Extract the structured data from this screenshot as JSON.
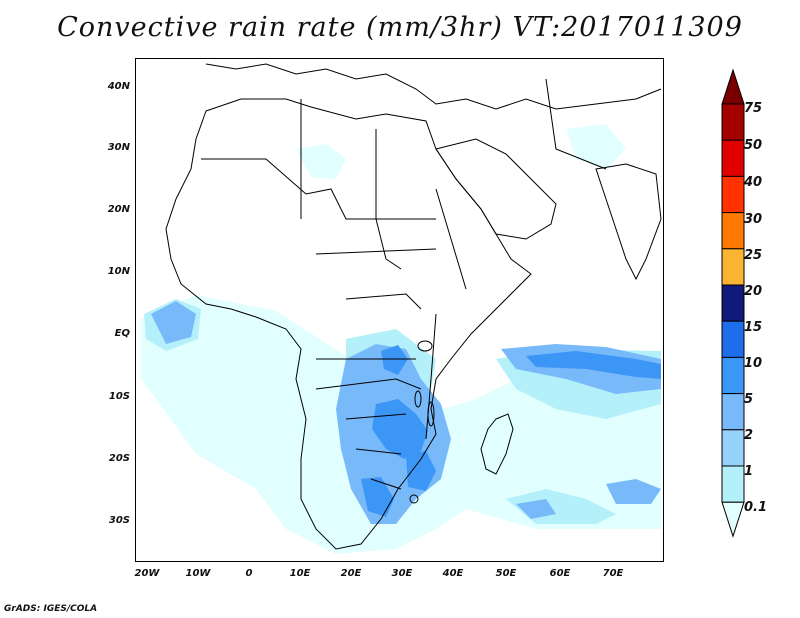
{
  "title": "Convective rain rate (mm/3hr) VT:2017011309",
  "footer": "GrADS: IGES/COLA",
  "latitude_labels": [
    "40N",
    "30N",
    "20N",
    "10N",
    "EQ",
    "10S",
    "20S",
    "30S"
  ],
  "longitude_labels": [
    "20W",
    "10W",
    "0",
    "10E",
    "20E",
    "30E",
    "40E",
    "50E",
    "60E",
    "70E"
  ],
  "colorbar": {
    "labels": [
      "0.1",
      "1",
      "2",
      "5",
      "10",
      "15",
      "20",
      "25",
      "30",
      "40",
      "50",
      "75"
    ],
    "colors": [
      "#e1ffff",
      "#b4f0fa",
      "#96d2fa",
      "#78b9fa",
      "#3c96f5",
      "#1e6eeb",
      "#101a7a",
      "#fab432",
      "#ff7800",
      "#ff3200",
      "#e10000",
      "#a50000",
      "#7a0000"
    ]
  },
  "rain_shading": {
    "light": "#e1ffff",
    "medium_light": "#b4f0fa",
    "medium": "#78b9fa",
    "strong": "#3c96f5"
  }
}
